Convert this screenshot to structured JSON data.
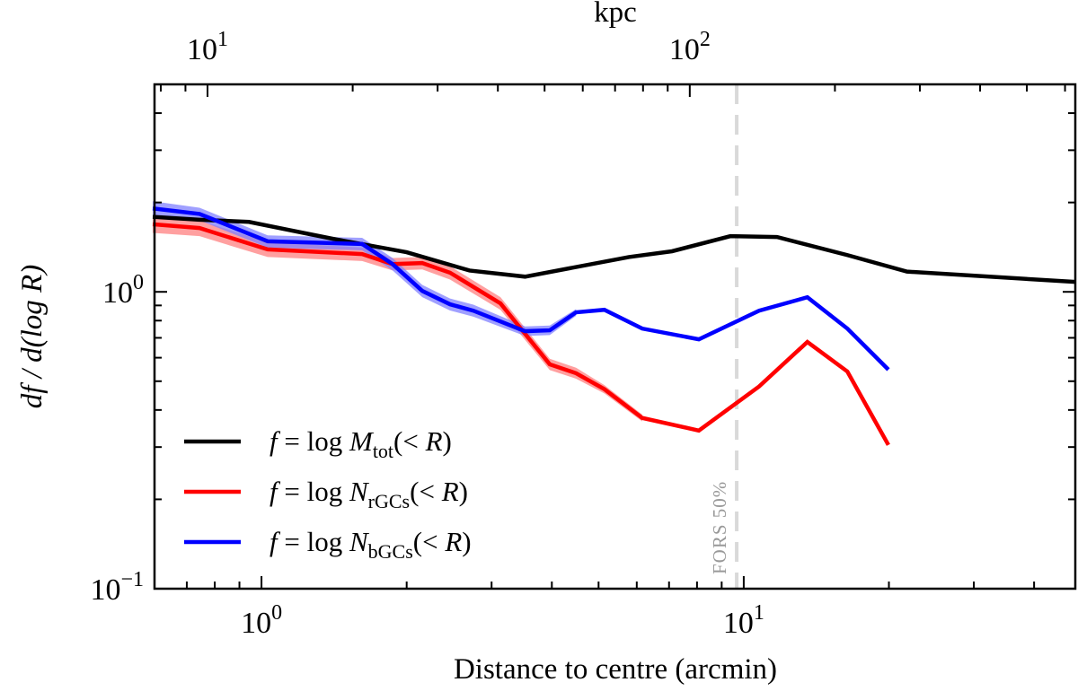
{
  "chart_data": {
    "type": "line",
    "xlabel": "Distance to centre (arcmin)",
    "ylabel": "df / d(log R)",
    "top_xlabel": "kpc",
    "xscale": "log",
    "yscale": "log",
    "xlim": [
      0.6,
      48.7
    ],
    "ylim": [
      0.1,
      5.0
    ],
    "x_tick_labels": [
      {
        "value": 1,
        "label": "10",
        "exp": "0"
      },
      {
        "value": 10,
        "label": "10",
        "exp": "1"
      }
    ],
    "y_tick_labels": [
      {
        "value": 0.1,
        "label": "10",
        "exp": "−1"
      },
      {
        "value": 1,
        "label": "10",
        "exp": "0"
      }
    ],
    "top_axis": {
      "kpc_per_arcmin": 12.94,
      "tick_labels": [
        {
          "value": 10,
          "label": "10",
          "exp": "1"
        },
        {
          "value": 100,
          "label": "10",
          "exp": "2"
        }
      ]
    },
    "grid": false,
    "legend_position": "bottom-left",
    "series": [
      {
        "name": "f = log M_tot(< R)",
        "legend": {
          "pre": "f",
          "mid": " = log ",
          "var": "M",
          "sub": "tot",
          "post_open": "(< ",
          "post_var": "R",
          "post_close": ")"
        },
        "color": "#000000",
        "x": [
          0.595,
          0.744,
          0.942,
          1.403,
          2.0,
          2.7,
          3.52,
          5.78,
          7.1,
          9.38,
          11.72,
          16.4,
          21.8,
          48.7
        ],
        "y": [
          1.79,
          1.75,
          1.72,
          1.51,
          1.36,
          1.18,
          1.125,
          1.31,
          1.37,
          1.54,
          1.53,
          1.33,
          1.17,
          1.08
        ]
      },
      {
        "name": "f = log N_rGCs(< R)",
        "legend": {
          "pre": "f",
          "mid": " = log ",
          "var": "N",
          "sub": "rGCs",
          "post_open": "(< ",
          "post_var": "R",
          "post_close": ")"
        },
        "color": "#ff0000",
        "band_color": "#ff8080",
        "x": [
          0.595,
          0.744,
          1.03,
          1.617,
          1.87,
          2.155,
          2.46,
          3.13,
          3.96,
          4.49,
          5.14,
          6.16,
          8.07,
          10.76,
          13.55,
          16.4,
          19.95
        ],
        "y": [
          1.69,
          1.64,
          1.39,
          1.34,
          1.24,
          1.25,
          1.16,
          0.914,
          0.57,
          0.532,
          0.47,
          0.376,
          0.341,
          0.48,
          0.678,
          0.539,
          0.305
        ],
        "y_lower": [
          1.58,
          1.54,
          1.31,
          1.27,
          1.18,
          1.19,
          1.1,
          0.87,
          0.545,
          0.51,
          0.455,
          0.366,
          null,
          null,
          null,
          null,
          null
        ],
        "y_upper": [
          1.8,
          1.74,
          1.47,
          1.41,
          1.3,
          1.31,
          1.22,
          0.96,
          0.595,
          0.555,
          0.485,
          0.386,
          null,
          null,
          null,
          null,
          null
        ]
      },
      {
        "name": "f = log N_bGCs(< R)",
        "legend": {
          "pre": "f",
          "mid": " = log ",
          "var": "N",
          "sub": "bGCs",
          "post_open": "(< ",
          "post_var": "R",
          "post_close": ")"
        },
        "color": "#0000ff",
        "band_color": "#8080ff",
        "x": [
          0.595,
          0.744,
          1.03,
          1.617,
          1.87,
          2.155,
          2.46,
          2.75,
          3.52,
          3.96,
          4.49,
          5.14,
          6.16,
          8.07,
          10.76,
          13.55,
          16.4,
          19.95
        ],
        "y": [
          1.91,
          1.83,
          1.48,
          1.45,
          1.24,
          1.007,
          0.908,
          0.864,
          0.737,
          0.742,
          0.853,
          0.87,
          0.752,
          0.692,
          0.864,
          0.959,
          0.752,
          0.547
        ],
        "y_lower": [
          1.8,
          1.74,
          1.41,
          1.38,
          1.18,
          0.96,
          0.865,
          0.825,
          0.71,
          0.715,
          0.83,
          null,
          null,
          null,
          null,
          null,
          null,
          null
        ],
        "y_upper": [
          2.02,
          1.92,
          1.55,
          1.52,
          1.3,
          1.055,
          0.95,
          0.905,
          0.765,
          0.77,
          0.875,
          null,
          null,
          null,
          null,
          null,
          null,
          null
        ]
      }
    ],
    "annotations": [
      {
        "type": "vline",
        "x": 9.67,
        "color": "#d9d9d9",
        "style": "dashed",
        "label": "FORS 50%",
        "label_color": "#999999"
      }
    ]
  }
}
